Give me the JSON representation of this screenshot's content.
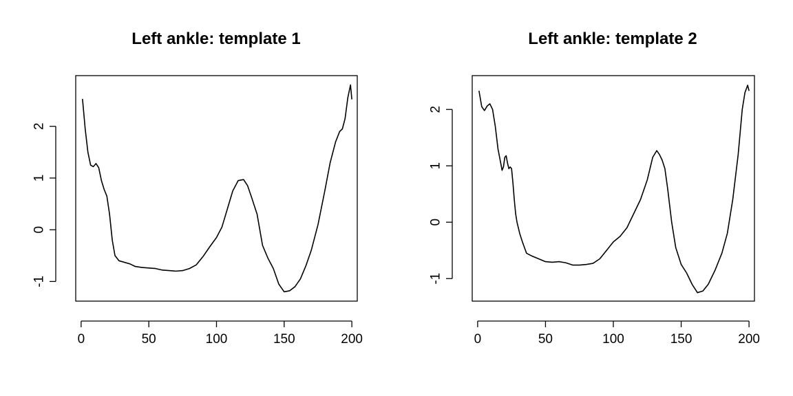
{
  "chart_data": [
    {
      "type": "line",
      "title": "Left ankle: template 1",
      "xlabel": "",
      "ylabel": "",
      "xlim": [
        -4,
        204
      ],
      "ylim": [
        -1.38,
        2.98
      ],
      "x_ticks": [
        0,
        50,
        100,
        150,
        200
      ],
      "y_ticks": [
        -1,
        0,
        1,
        2
      ],
      "grid": false,
      "series": [
        {
          "x": [
            1,
            3,
            5,
            7,
            9,
            11,
            13,
            15,
            17,
            19,
            21,
            23,
            25,
            28,
            32,
            36,
            40,
            45,
            50,
            55,
            60,
            65,
            70,
            75,
            80,
            85,
            90,
            95,
            100,
            104,
            108,
            112,
            116,
            120,
            123,
            126,
            130,
            134,
            138,
            142,
            146,
            150,
            154,
            158,
            162,
            166,
            170,
            175,
            180,
            184,
            188,
            191,
            193,
            195,
            197,
            199,
            200
          ],
          "y": [
            2.53,
            1.95,
            1.5,
            1.25,
            1.22,
            1.28,
            1.2,
            0.95,
            0.78,
            0.65,
            0.3,
            -0.2,
            -0.5,
            -0.6,
            -0.63,
            -0.66,
            -0.71,
            -0.73,
            -0.74,
            -0.75,
            -0.78,
            -0.79,
            -0.8,
            -0.79,
            -0.75,
            -0.68,
            -0.52,
            -0.33,
            -0.15,
            0.05,
            0.4,
            0.75,
            0.95,
            0.97,
            0.85,
            0.62,
            0.3,
            -0.3,
            -0.55,
            -0.75,
            -1.05,
            -1.2,
            -1.18,
            -1.1,
            -0.95,
            -0.7,
            -0.4,
            0.1,
            0.75,
            1.3,
            1.7,
            1.9,
            1.95,
            2.15,
            2.55,
            2.8,
            2.52
          ]
        }
      ]
    },
    {
      "type": "line",
      "title": "Left ankle: template 2",
      "xlabel": "",
      "ylabel": "",
      "xlim": [
        -4,
        204
      ],
      "ylim": [
        -1.4,
        2.6
      ],
      "x_ticks": [
        0,
        50,
        100,
        150,
        200
      ],
      "y_ticks": [
        -1,
        0,
        1,
        2
      ],
      "grid": false,
      "series": [
        {
          "x": [
            1,
            3,
            5,
            7,
            9,
            11,
            13,
            15,
            17,
            18,
            19,
            20,
            21,
            22,
            23,
            24,
            25,
            26,
            27,
            28,
            29,
            31,
            33,
            36,
            40,
            45,
            50,
            55,
            60,
            65,
            70,
            75,
            80,
            85,
            90,
            95,
            100,
            105,
            110,
            115,
            120,
            125,
            129,
            132,
            134,
            136,
            138,
            140,
            143,
            146,
            150,
            154,
            158,
            162,
            166,
            170,
            175,
            180,
            184,
            188,
            192,
            195,
            197,
            199,
            200
          ],
          "y": [
            2.33,
            2.05,
            1.98,
            2.06,
            2.1,
            2.0,
            1.7,
            1.3,
            1.05,
            0.92,
            0.98,
            1.15,
            1.18,
            1.05,
            0.95,
            0.98,
            0.95,
            0.7,
            0.4,
            0.15,
            0.0,
            -0.2,
            -0.35,
            -0.55,
            -0.6,
            -0.65,
            -0.7,
            -0.71,
            -0.7,
            -0.72,
            -0.76,
            -0.76,
            -0.75,
            -0.73,
            -0.65,
            -0.5,
            -0.35,
            -0.25,
            -0.1,
            0.15,
            0.4,
            0.75,
            1.15,
            1.27,
            1.2,
            1.1,
            0.95,
            0.6,
            0.0,
            -0.45,
            -0.75,
            -0.9,
            -1.1,
            -1.25,
            -1.22,
            -1.1,
            -0.85,
            -0.55,
            -0.2,
            0.4,
            1.2,
            2.0,
            2.3,
            2.43,
            2.33
          ]
        }
      ]
    }
  ]
}
